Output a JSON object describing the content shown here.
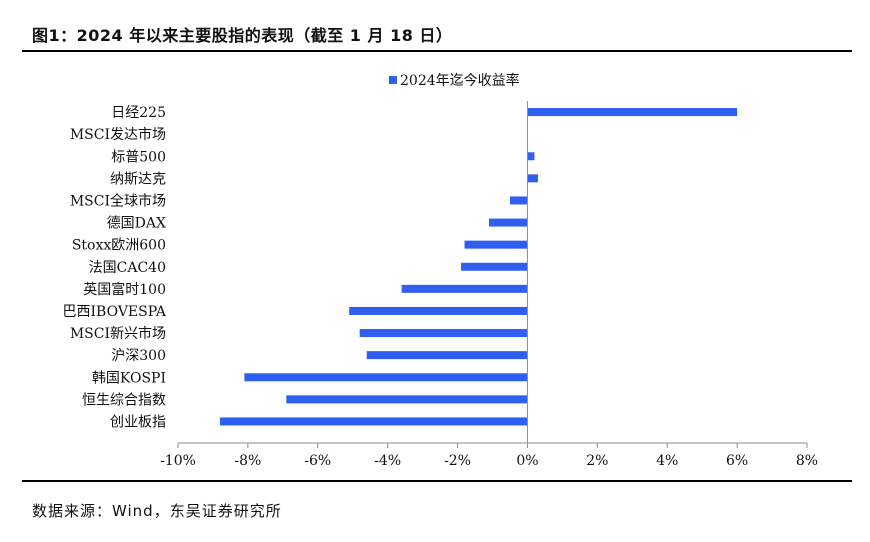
{
  "figure": {
    "title": "图1：2024 年以来主要股指的表现（截至 1 月 18 日）",
    "source": "数据来源：Wind，东吴证券研究所"
  },
  "colors": {
    "bar": "#2f5ff0",
    "axis": "#8c8c8c"
  },
  "chart_data": {
    "type": "bar",
    "orientation": "horizontal",
    "legend_position": "top-center",
    "grid": false,
    "categories": [
      "日经225",
      "MSCI发达市场",
      "标普500",
      "纳斯达克",
      "MSCI全球市场",
      "德国DAX",
      "Stoxx欧洲600",
      "法国CAC40",
      "英国富时100",
      "巴西IBOVESPA",
      "MSCI新兴市场",
      "沪深300",
      "韩国KOSPI",
      "恒生综合指数",
      "创业板指"
    ],
    "series": [
      {
        "name": "2024年迄今收益率",
        "values": [
          6.0,
          0.0,
          0.2,
          0.3,
          -0.5,
          -1.1,
          -1.8,
          -1.9,
          -3.6,
          -5.1,
          -4.8,
          -4.6,
          -8.1,
          -6.9,
          -8.8
        ]
      }
    ],
    "xlim": [
      -10,
      8
    ],
    "xticks": [
      -10,
      -8,
      -6,
      -4,
      -2,
      0,
      2,
      4,
      6,
      8
    ],
    "xtick_labels": [
      "-10%",
      "-8%",
      "-6%",
      "-4%",
      "-2%",
      "0%",
      "2%",
      "4%",
      "6%",
      "8%"
    ]
  }
}
